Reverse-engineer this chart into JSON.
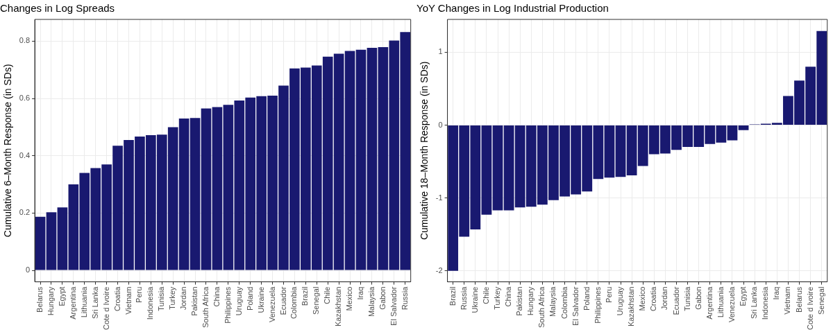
{
  "chart_data": [
    {
      "type": "bar",
      "title": "Changes in Log Spreads",
      "ylabel": "Cumulative 6–Month Response (in SDs)",
      "categories": [
        "Belarus",
        "Hungary",
        "Egypt",
        "Argentina",
        "Lithuania",
        "Sri Lanka",
        "Cote d Ivoire",
        "Croatia",
        "Vietnam",
        "Peru",
        "Indonesia",
        "Tunisia",
        "Turkey",
        "Jordan",
        "Pakistan",
        "South Africa",
        "China",
        "Philippines",
        "Uruguay",
        "Poland",
        "Ukraine",
        "Venezuela",
        "Ecuador",
        "Colombia",
        "Brazil",
        "Senegal",
        "Chile",
        "Kazakhstan",
        "Mexico",
        "Iraq",
        "Malaysia",
        "Gabon",
        "El Salvador",
        "Russia"
      ],
      "values": [
        0.187,
        0.203,
        0.22,
        0.3,
        0.34,
        0.357,
        0.37,
        0.435,
        0.455,
        0.467,
        0.472,
        0.474,
        0.5,
        0.53,
        0.532,
        0.565,
        0.57,
        0.578,
        0.593,
        0.603,
        0.608,
        0.61,
        0.645,
        0.705,
        0.708,
        0.715,
        0.746,
        0.756,
        0.766,
        0.77,
        0.777,
        0.779,
        0.802,
        0.832
      ],
      "color": "#191970",
      "ylim": [
        -0.04,
        0.876
      ],
      "yticks": [
        0,
        0.2,
        0.4,
        0.6,
        0.8
      ],
      "grid": true
    },
    {
      "type": "bar",
      "title": "YoY Changes in Log Industrial Production",
      "ylabel": "Cumulative 18–Month Response (in SDs)",
      "categories": [
        "Brazil",
        "Russia",
        "Ukraine",
        "Chile",
        "Turkey",
        "China",
        "Pakistan",
        "Hungary",
        "South Africa",
        "Malaysia",
        "Colombia",
        "El Salvador",
        "Poland",
        "Philippines",
        "Peru",
        "Uruguay",
        "Kazakhstan",
        "Mexico",
        "Croatia",
        "Jordan",
        "Ecuador",
        "Tunisia",
        "Gabon",
        "Argentina",
        "Lithuania",
        "Venezuela",
        "Egypt",
        "Sri Lanka",
        "Indonesia",
        "Iraq",
        "Vietnam",
        "Belarus",
        "Cote d Ivoire",
        "Senegal"
      ],
      "values": [
        -2.0,
        -1.53,
        -1.43,
        -1.23,
        -1.17,
        -1.17,
        -1.13,
        -1.12,
        -1.09,
        -1.03,
        -0.98,
        -0.95,
        -0.91,
        -0.74,
        -0.72,
        -0.71,
        -0.69,
        -0.56,
        -0.4,
        -0.39,
        -0.34,
        -0.3,
        -0.3,
        -0.26,
        -0.24,
        -0.21,
        -0.07,
        0.01,
        0.02,
        0.03,
        0.4,
        0.61,
        0.8,
        1.29
      ],
      "color": "#191970",
      "ylim": [
        -2.15,
        1.45
      ],
      "yticks": [
        -2,
        -1,
        0,
        1
      ],
      "grid": true
    }
  ]
}
